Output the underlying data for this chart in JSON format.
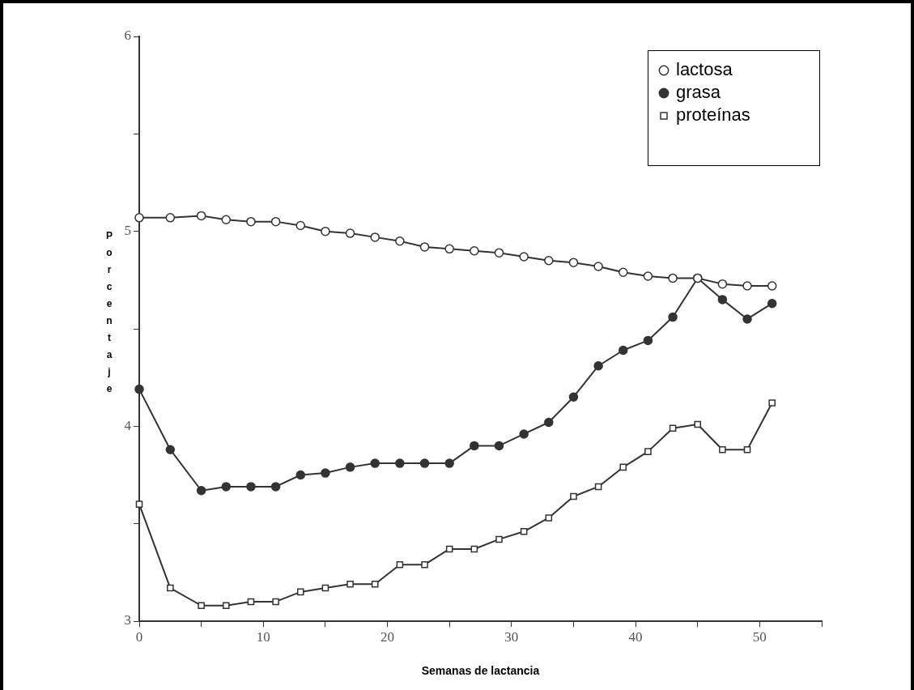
{
  "chart_data": {
    "type": "line",
    "xlabel": "Semanas de lactancia",
    "ylabel": "Porcentaje",
    "x": [
      0,
      2.5,
      5,
      7,
      9,
      11,
      13,
      15,
      17,
      19,
      21,
      23,
      25,
      27,
      29,
      31,
      33,
      35,
      37,
      39,
      41,
      43,
      45,
      47,
      49,
      51
    ],
    "series": [
      {
        "name": "lactosa",
        "color": "#ffffff",
        "marker": "circle",
        "values": [
          5.07,
          5.07,
          5.08,
          5.06,
          5.05,
          5.05,
          5.03,
          5.0,
          4.99,
          4.97,
          4.95,
          4.92,
          4.91,
          4.9,
          4.89,
          4.87,
          4.85,
          4.84,
          4.82,
          4.79,
          4.77,
          4.76,
          4.76,
          4.73,
          4.72,
          4.72
        ]
      },
      {
        "name": "grasa",
        "color": "#333333",
        "marker": "circle",
        "values": [
          4.19,
          3.88,
          3.67,
          3.69,
          3.69,
          3.69,
          3.75,
          3.76,
          3.79,
          3.81,
          3.81,
          3.81,
          3.81,
          3.9,
          3.9,
          3.96,
          4.02,
          4.15,
          4.31,
          4.39,
          4.44,
          4.56,
          4.76,
          4.65,
          4.55,
          4.63
        ]
      },
      {
        "name": "proteínas",
        "color": "#ffffff",
        "marker": "square",
        "values": [
          3.6,
          3.17,
          3.08,
          3.08,
          3.1,
          3.1,
          3.15,
          3.17,
          3.19,
          3.19,
          3.29,
          3.29,
          3.37,
          3.37,
          3.42,
          3.46,
          3.53,
          3.64,
          3.69,
          3.79,
          3.87,
          3.99,
          4.01,
          3.88,
          3.88,
          4.12
        ]
      }
    ],
    "xlim": [
      0,
      55
    ],
    "xticks": [
      0,
      {
        "value": 5,
        "label": null
      },
      10,
      {
        "value": 15,
        "label": null
      },
      20,
      {
        "value": 25,
        "label": null
      },
      30,
      {
        "value": 35,
        "label": null
      },
      40,
      {
        "value": 45,
        "label": null
      },
      50,
      {
        "value": 55,
        "label": null
      }
    ],
    "ylim": [
      3,
      6
    ],
    "yticks": [
      3,
      {
        "value": 3.5,
        "label": null
      },
      4,
      {
        "value": 4.5,
        "label": null
      },
      5,
      {
        "value": 5.5,
        "label": null
      },
      6
    ],
    "grid": false,
    "legend": "top right",
    "line_style": "solid"
  }
}
